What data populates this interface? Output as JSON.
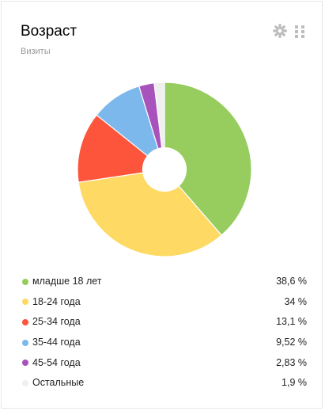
{
  "widget": {
    "title": "Возраст",
    "subtitle": "Визиты",
    "settings_icon": "gear-icon",
    "drag_icon": "grip-icon"
  },
  "colors": {
    "младше 18 лет": "#97cd5f",
    "18-24 года": "#fed963",
    "25-34 года": "#fd553b",
    "35-44 года": "#7db8ec",
    "45-54 года": "#a852bc",
    "Остальные": "#efefef"
  },
  "chart_data": {
    "type": "pie",
    "donut": true,
    "title": "Возраст",
    "subtitle": "Визиты",
    "categories": [
      "младше 18 лет",
      "18-24 года",
      "25-34 года",
      "35-44 года",
      "45-54 года",
      "Остальные"
    ],
    "values": [
      38.6,
      34,
      13.1,
      9.52,
      2.83,
      1.9
    ],
    "value_labels": [
      "38,6 %",
      "34 %",
      "13,1 %",
      "9,52 %",
      "2,83 %",
      "1,9 %"
    ],
    "unit": "%",
    "legend_position": "bottom"
  },
  "legend": [
    {
      "label": "младше 18 лет",
      "value": "38,6 %"
    },
    {
      "label": "18-24 года",
      "value": "34 %"
    },
    {
      "label": "25-34 года",
      "value": "13,1 %"
    },
    {
      "label": "35-44 года",
      "value": "9,52 %"
    },
    {
      "label": "45-54 года",
      "value": "2,83 %"
    },
    {
      "label": "Остальные",
      "value": "1,9 %"
    }
  ]
}
